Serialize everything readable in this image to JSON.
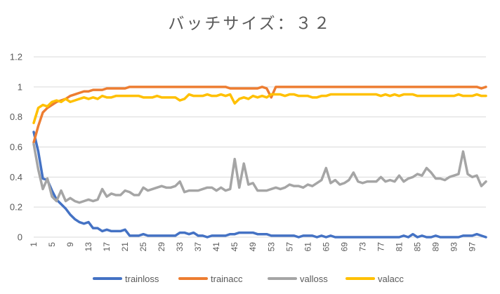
{
  "chart_data": {
    "type": "line",
    "title": "バッチサイズ：３２",
    "xlabel": "",
    "ylabel": "",
    "ylim": [
      0,
      1.2
    ],
    "yticks": [
      "0",
      "0.2",
      "0.4",
      "0.6",
      "0.8",
      "1",
      "1.2"
    ],
    "xlim": [
      1,
      100
    ],
    "xticks": [
      "1",
      "5",
      "9",
      "13",
      "17",
      "21",
      "25",
      "29",
      "33",
      "37",
      "41",
      "45",
      "49",
      "53",
      "57",
      "61",
      "65",
      "69",
      "73",
      "77",
      "81",
      "85",
      "89",
      "93",
      "97"
    ],
    "grid": true,
    "legend_position": "bottom",
    "series": [
      {
        "name": "trainloss",
        "color": "#4472C4",
        "values": [
          0.7,
          0.57,
          0.39,
          0.38,
          0.31,
          0.25,
          0.22,
          0.19,
          0.15,
          0.12,
          0.1,
          0.09,
          0.1,
          0.06,
          0.06,
          0.04,
          0.05,
          0.04,
          0.04,
          0.04,
          0.05,
          0.01,
          0.01,
          0.01,
          0.02,
          0.01,
          0.01,
          0.01,
          0.01,
          0.01,
          0.01,
          0.01,
          0.03,
          0.03,
          0.02,
          0.03,
          0.01,
          0.01,
          0.0,
          0.01,
          0.01,
          0.01,
          0.01,
          0.02,
          0.02,
          0.03,
          0.03,
          0.03,
          0.03,
          0.02,
          0.02,
          0.02,
          0.01,
          0.01,
          0.01,
          0.01,
          0.01,
          0.01,
          0.0,
          0.01,
          0.01,
          0.01,
          0.0,
          0.01,
          0.0,
          0.01,
          0.0,
          0.0,
          0.0,
          0.0,
          0.0,
          0.0,
          0.0,
          0.0,
          0.0,
          0.0,
          0.0,
          0.0,
          0.0,
          0.0,
          0.0,
          0.01,
          0.0,
          0.02,
          0.0,
          0.01,
          0.0,
          0.0,
          0.01,
          0.0,
          0.0,
          0.0,
          0.0,
          0.0,
          0.01,
          0.01,
          0.01,
          0.02,
          0.01,
          0.0
        ]
      },
      {
        "name": "trainacc",
        "color": "#ED7D31",
        "values": [
          0.63,
          0.74,
          0.83,
          0.86,
          0.88,
          0.9,
          0.91,
          0.92,
          0.94,
          0.95,
          0.96,
          0.97,
          0.97,
          0.98,
          0.98,
          0.98,
          0.99,
          0.99,
          0.99,
          0.99,
          0.99,
          1.0,
          1.0,
          1.0,
          1.0,
          1.0,
          1.0,
          1.0,
          1.0,
          1.0,
          1.0,
          1.0,
          1.0,
          1.0,
          1.0,
          1.0,
          1.0,
          1.0,
          1.0,
          1.0,
          1.0,
          1.0,
          1.0,
          0.99,
          0.99,
          0.99,
          0.99,
          0.99,
          0.99,
          0.99,
          1.0,
          0.99,
          0.93,
          1.0,
          1.0,
          1.0,
          1.0,
          1.0,
          1.0,
          1.0,
          1.0,
          1.0,
          1.0,
          1.0,
          1.0,
          1.0,
          1.0,
          1.0,
          1.0,
          1.0,
          1.0,
          1.0,
          1.0,
          1.0,
          1.0,
          1.0,
          1.0,
          1.0,
          1.0,
          1.0,
          1.0,
          1.0,
          1.0,
          1.0,
          1.0,
          1.0,
          1.0,
          1.0,
          1.0,
          1.0,
          1.0,
          1.0,
          1.0,
          1.0,
          1.0,
          1.0,
          1.0,
          1.0,
          0.99,
          1.0
        ]
      },
      {
        "name": "valloss",
        "color": "#A5A5A5",
        "values": [
          0.62,
          0.45,
          0.32,
          0.39,
          0.27,
          0.24,
          0.31,
          0.24,
          0.26,
          0.24,
          0.23,
          0.24,
          0.25,
          0.24,
          0.25,
          0.32,
          0.27,
          0.29,
          0.28,
          0.28,
          0.31,
          0.3,
          0.28,
          0.28,
          0.33,
          0.31,
          0.32,
          0.33,
          0.34,
          0.33,
          0.33,
          0.34,
          0.37,
          0.3,
          0.31,
          0.31,
          0.31,
          0.32,
          0.33,
          0.33,
          0.31,
          0.33,
          0.31,
          0.32,
          0.52,
          0.33,
          0.49,
          0.35,
          0.36,
          0.31,
          0.31,
          0.31,
          0.32,
          0.33,
          0.32,
          0.33,
          0.35,
          0.34,
          0.34,
          0.33,
          0.35,
          0.34,
          0.36,
          0.38,
          0.46,
          0.36,
          0.38,
          0.35,
          0.36,
          0.38,
          0.43,
          0.37,
          0.36,
          0.37,
          0.37,
          0.37,
          0.4,
          0.37,
          0.38,
          0.37,
          0.41,
          0.37,
          0.39,
          0.4,
          0.42,
          0.41,
          0.46,
          0.43,
          0.39,
          0.39,
          0.38,
          0.4,
          0.41,
          0.42,
          0.57,
          0.42,
          0.4,
          0.41,
          0.34,
          0.37
        ]
      },
      {
        "name": "valacc",
        "color": "#FFC000",
        "values": [
          0.76,
          0.86,
          0.88,
          0.87,
          0.9,
          0.91,
          0.9,
          0.92,
          0.9,
          0.91,
          0.92,
          0.93,
          0.92,
          0.93,
          0.92,
          0.94,
          0.93,
          0.93,
          0.94,
          0.94,
          0.94,
          0.94,
          0.94,
          0.94,
          0.93,
          0.93,
          0.93,
          0.94,
          0.93,
          0.93,
          0.93,
          0.93,
          0.91,
          0.92,
          0.95,
          0.94,
          0.94,
          0.94,
          0.95,
          0.94,
          0.94,
          0.95,
          0.94,
          0.95,
          0.89,
          0.92,
          0.93,
          0.92,
          0.94,
          0.93,
          0.94,
          0.93,
          0.95,
          0.95,
          0.95,
          0.94,
          0.95,
          0.95,
          0.94,
          0.94,
          0.94,
          0.93,
          0.93,
          0.94,
          0.94,
          0.95,
          0.95,
          0.95,
          0.95,
          0.95,
          0.95,
          0.95,
          0.95,
          0.95,
          0.95,
          0.95,
          0.94,
          0.95,
          0.94,
          0.95,
          0.94,
          0.95,
          0.95,
          0.95,
          0.94,
          0.94,
          0.94,
          0.94,
          0.94,
          0.94,
          0.94,
          0.94,
          0.94,
          0.95,
          0.94,
          0.94,
          0.94,
          0.95,
          0.94,
          0.94
        ]
      }
    ]
  }
}
